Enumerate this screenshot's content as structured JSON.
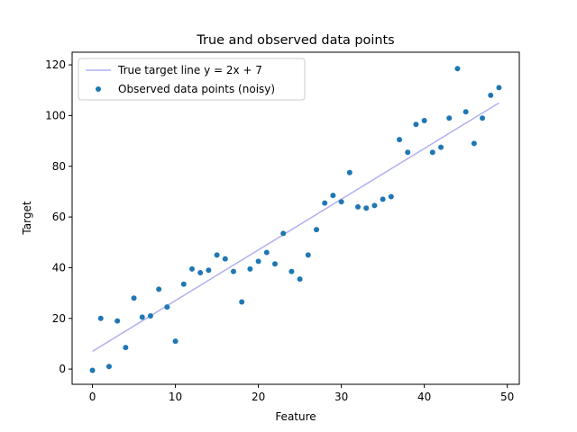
{
  "chart_data": {
    "type": "scatter",
    "title": "True and observed data points",
    "xlabel": "Feature",
    "ylabel": "Target",
    "xlim": [
      -2.45,
      51.45
    ],
    "ylim": [
      -6,
      125
    ],
    "xticks": [
      0,
      10,
      20,
      30,
      40,
      50
    ],
    "yticks": [
      0,
      20,
      40,
      60,
      80,
      100,
      120
    ],
    "grid": false,
    "legend_position": "upper-left",
    "series": [
      {
        "name": "True target line y = 2x + 7",
        "kind": "line",
        "color": "#b0b0f0",
        "x": [
          0,
          49
        ],
        "y": [
          7,
          105
        ]
      },
      {
        "name": "Observed data points (noisy)",
        "kind": "scatter",
        "color": "#1f77b4",
        "x": [
          0,
          1,
          2,
          3,
          4,
          5,
          6,
          7,
          8,
          9,
          10,
          11,
          12,
          13,
          14,
          15,
          16,
          17,
          18,
          19,
          20,
          21,
          22,
          23,
          24,
          25,
          26,
          27,
          28,
          29,
          30,
          31,
          32,
          33,
          34,
          35,
          36,
          37,
          38,
          39,
          40,
          41,
          42,
          43,
          44,
          45,
          46,
          47,
          48,
          49
        ],
        "y": [
          -0.5,
          20,
          1,
          19,
          8.5,
          28,
          20.5,
          21,
          31.5,
          24.5,
          11,
          33.5,
          39.5,
          38,
          39,
          45,
          43.5,
          38.5,
          26.5,
          39.5,
          42.5,
          46,
          41.5,
          53.5,
          38.5,
          35.5,
          45,
          55,
          65.5,
          68.5,
          66,
          77.5,
          64,
          63.5,
          64.5,
          67,
          68,
          90.5,
          85.5,
          96.5,
          98,
          85.5,
          87.5,
          99,
          118.5,
          101.5,
          89,
          99,
          108,
          111
        ]
      }
    ]
  }
}
